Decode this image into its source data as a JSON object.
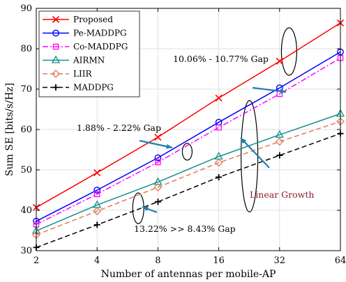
{
  "chart_data": {
    "type": "line",
    "xlabel": "Number of antennas per mobile-AP",
    "ylabel": "Sum SE [bits/s/Hz]",
    "x_scale": "log2",
    "x": [
      2,
      4,
      8,
      16,
      32,
      64
    ],
    "x_tick_labels": [
      "2",
      "4",
      "8",
      "16",
      "32",
      "64"
    ],
    "ylim": [
      30,
      90
    ],
    "y_ticks": [
      30,
      40,
      50,
      60,
      70,
      80,
      90
    ],
    "grid": true,
    "legend_position": "top-left",
    "series": [
      {
        "name": "Proposed",
        "color": "#ff0000",
        "dash": "solid",
        "marker": "x",
        "values": [
          40.7,
          49.3,
          58.1,
          67.8,
          76.9,
          86.4
        ]
      },
      {
        "name": "Pe-MADDPG",
        "color": "#0000ff",
        "dash": "solid",
        "marker": "circle",
        "values": [
          37.3,
          45.0,
          53.0,
          61.8,
          70.3,
          79.2
        ]
      },
      {
        "name": "Co-MADDPG",
        "color": "#ff00ff",
        "dash": "dashdot",
        "marker": "square",
        "values": [
          36.5,
          44.0,
          51.9,
          60.5,
          68.8,
          77.7
        ]
      },
      {
        "name": "AIRMN",
        "color": "#12908e",
        "dash": "solid",
        "marker": "triangle",
        "values": [
          34.9,
          41.3,
          47.0,
          53.3,
          58.7,
          63.9
        ]
      },
      {
        "name": "LIIR",
        "color": "#e07b54",
        "dash": "dash",
        "marker": "diamond",
        "values": [
          33.9,
          39.8,
          45.7,
          51.8,
          57.0,
          62.0
        ]
      },
      {
        "name": "MADDPG",
        "color": "#000000",
        "dash": "dash",
        "marker": "plus",
        "values": [
          30.8,
          36.4,
          42.1,
          48.2,
          53.6,
          59.0
        ]
      }
    ],
    "annotations": [
      {
        "text": "10.06% - 10.77% Gap",
        "color": "#000000"
      },
      {
        "text": "1.88% - 2.22% Gap",
        "color": "#000000"
      },
      {
        "text": "Linear Growth",
        "color": "#8b1a2e"
      },
      {
        "text": "13.22% >> 8.43% Gap",
        "color": "#000000"
      }
    ],
    "arrow_color": "#1f7fb4"
  }
}
